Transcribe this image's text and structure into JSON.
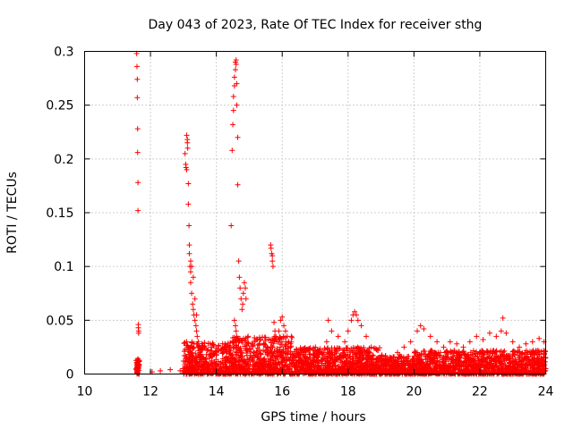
{
  "chart_data": {
    "type": "scatter",
    "title": "Day 043 of 2023, Rate Of TEC Index for receiver sthg",
    "xlabel": "GPS time / hours",
    "ylabel": "ROTI / TECUs",
    "xlim": [
      10,
      24
    ],
    "ylim": [
      0,
      0.3
    ],
    "xticks": [
      "10",
      "12",
      "14",
      "16",
      "18",
      "20",
      "22",
      "24"
    ],
    "yticks": [
      "0",
      "0.05",
      "0.1",
      "0.15",
      "0.2",
      "0.25",
      "0.3"
    ],
    "grid": true,
    "marker": "+",
    "color": "#ff0000",
    "series": [
      {
        "name": "ROTI",
        "x": [
          11.58,
          11.59,
          11.6,
          11.6,
          11.61,
          11.61,
          11.62,
          11.62,
          11.63,
          11.63,
          11.64,
          11.64,
          11.6,
          11.61,
          11.6,
          11.61,
          11.62,
          11.61,
          11.62,
          11.63,
          11.61,
          11.62,
          11.6,
          11.62,
          11.61,
          11.62,
          11.61,
          11.62,
          11.62,
          11.61,
          13.05,
          13.07,
          13.08,
          13.1,
          13.1,
          13.12,
          13.12,
          13.13,
          13.15,
          13.15,
          13.17,
          13.18,
          13.18,
          13.2,
          13.22,
          13.22,
          13.25,
          13.28,
          13.3,
          13.32,
          13.35,
          13.38,
          13.4,
          13.42,
          13.45,
          13.48,
          13.5,
          13.1,
          13.15,
          13.22,
          13.25,
          13.3,
          13.35,
          13.4,
          14.45,
          14.48,
          14.5,
          14.52,
          14.52,
          14.55,
          14.55,
          14.58,
          14.58,
          14.6,
          14.6,
          14.62,
          14.62,
          14.65,
          14.65,
          14.68,
          14.7,
          14.72,
          14.75,
          14.78,
          14.8,
          14.82,
          14.85,
          14.88,
          14.9,
          14.55,
          14.58,
          14.6,
          14.62,
          14.5,
          14.55,
          14.62,
          14.7,
          14.45,
          15.65,
          15.66,
          15.68,
          15.7,
          15.7,
          15.72,
          15.75,
          15.78,
          15.8,
          15.85,
          15.9,
          15.95,
          16.0,
          16.05,
          16.1,
          16.15,
          16.2,
          16.25,
          16.5,
          16.7,
          16.9,
          17.1,
          17.25,
          17.35,
          17.4,
          17.5,
          17.7,
          17.9,
          18.0,
          18.1,
          18.15,
          18.2,
          18.25,
          18.3,
          18.4,
          18.55,
          18.7,
          18.9,
          19.1,
          19.3,
          19.5,
          19.7,
          19.9,
          20.1,
          20.2,
          20.3,
          20.5,
          20.7,
          20.9,
          21.1,
          21.3,
          21.5,
          21.7,
          21.9,
          22.1,
          22.3,
          22.5,
          22.65,
          22.7,
          22.8,
          23.0,
          23.2,
          23.4,
          23.6,
          23.8,
          23.95,
          12.05,
          12.3,
          12.6,
          12.9,
          13.0,
          13.1,
          13.3,
          13.5,
          13.6,
          13.8,
          14.0,
          14.1,
          14.2,
          14.3,
          14.4,
          14.6,
          14.8,
          15.0,
          15.2,
          15.4,
          15.6,
          15.8,
          16.0,
          16.2,
          16.4,
          16.6,
          16.8,
          17.0,
          17.2,
          17.4,
          17.6,
          17.8,
          18.0,
          18.2,
          18.4,
          18.6,
          18.8,
          19.0,
          19.2,
          19.4,
          19.6,
          19.8,
          20.0,
          20.2,
          20.4,
          20.6,
          20.8,
          21.0,
          21.2,
          21.4,
          21.6,
          21.8,
          22.0,
          22.2,
          22.4,
          22.6,
          22.8,
          23.0,
          23.2,
          23.4,
          23.6,
          23.8,
          24.0,
          13.2,
          13.7,
          14.2,
          14.7,
          15.2,
          15.7,
          16.2,
          16.7,
          17.2,
          17.7,
          18.2,
          18.7,
          19.2,
          19.7,
          20.2,
          20.7,
          21.2,
          21.7,
          22.2,
          22.7,
          23.2,
          23.7,
          13.4,
          13.9,
          14.4,
          14.9,
          15.4,
          15.9,
          16.4,
          16.9,
          17.4,
          17.9,
          18.4,
          18.9,
          19.4,
          19.9,
          20.4,
          20.9,
          21.4,
          21.9,
          22.4,
          22.9,
          23.4,
          23.9
        ],
        "y": [
          0.298,
          0.286,
          0.274,
          0.257,
          0.228,
          0.206,
          0.178,
          0.152,
          0.046,
          0.043,
          0.04,
          0.038,
          0.013,
          0.011,
          0.01,
          0.009,
          0.008,
          0.007,
          0.006,
          0.005,
          0.004,
          0.012,
          0.003,
          0.014,
          0.002,
          0.009,
          0.006,
          0.011,
          0.008,
          0.005,
          0.205,
          0.195,
          0.192,
          0.19,
          0.222,
          0.218,
          0.215,
          0.21,
          0.177,
          0.158,
          0.138,
          0.12,
          0.112,
          0.1,
          0.095,
          0.085,
          0.075,
          0.065,
          0.06,
          0.055,
          0.05,
          0.045,
          0.04,
          0.035,
          0.03,
          0.025,
          0.02,
          0.03,
          0.025,
          0.105,
          0.1,
          0.09,
          0.07,
          0.055,
          0.138,
          0.208,
          0.232,
          0.245,
          0.258,
          0.268,
          0.276,
          0.283,
          0.29,
          0.292,
          0.288,
          0.27,
          0.25,
          0.22,
          0.176,
          0.105,
          0.09,
          0.08,
          0.07,
          0.06,
          0.065,
          0.075,
          0.085,
          0.08,
          0.07,
          0.05,
          0.045,
          0.04,
          0.035,
          0.03,
          0.025,
          0.02,
          0.015,
          0.01,
          0.12,
          0.117,
          0.112,
          0.11,
          0.105,
          0.1,
          0.048,
          0.04,
          0.035,
          0.03,
          0.04,
          0.05,
          0.053,
          0.045,
          0.04,
          0.035,
          0.03,
          0.025,
          0.012,
          0.015,
          0.01,
          0.012,
          0.02,
          0.03,
          0.05,
          0.04,
          0.035,
          0.03,
          0.04,
          0.05,
          0.055,
          0.058,
          0.055,
          0.05,
          0.045,
          0.035,
          0.025,
          0.015,
          0.01,
          0.015,
          0.02,
          0.025,
          0.03,
          0.04,
          0.045,
          0.042,
          0.035,
          0.03,
          0.025,
          0.03,
          0.028,
          0.025,
          0.03,
          0.035,
          0.032,
          0.038,
          0.035,
          0.04,
          0.052,
          0.038,
          0.03,
          0.025,
          0.028,
          0.03,
          0.033,
          0.03,
          0.002,
          0.003,
          0.004,
          0.003,
          0.005,
          0.006,
          0.008,
          0.004,
          0.006,
          0.005,
          0.007,
          0.004,
          0.006,
          0.005,
          0.003,
          0.006,
          0.004,
          0.005,
          0.003,
          0.004,
          0.002,
          0.005,
          0.003,
          0.004,
          0.002,
          0.003,
          0.004,
          0.002,
          0.003,
          0.004,
          0.002,
          0.003,
          0.005,
          0.004,
          0.003,
          0.002,
          0.004,
          0.003,
          0.002,
          0.004,
          0.003,
          0.002,
          0.004,
          0.003,
          0.002,
          0.004,
          0.003,
          0.005,
          0.002,
          0.003,
          0.004,
          0.002,
          0.003,
          0.004,
          0.002,
          0.003,
          0.005,
          0.002,
          0.003,
          0.004,
          0.002,
          0.003,
          0.005,
          0.015,
          0.018,
          0.02,
          0.022,
          0.018,
          0.016,
          0.014,
          0.012,
          0.01,
          0.015,
          0.018,
          0.014,
          0.012,
          0.01,
          0.013,
          0.015,
          0.012,
          0.013,
          0.014,
          0.016,
          0.012,
          0.01,
          0.008,
          0.01,
          0.012,
          0.011,
          0.009,
          0.01,
          0.008,
          0.007,
          0.008,
          0.009,
          0.01,
          0.008,
          0.007,
          0.008,
          0.009,
          0.008,
          0.007,
          0.009,
          0.008,
          0.01,
          0.009,
          0.008
        ]
      }
    ]
  }
}
